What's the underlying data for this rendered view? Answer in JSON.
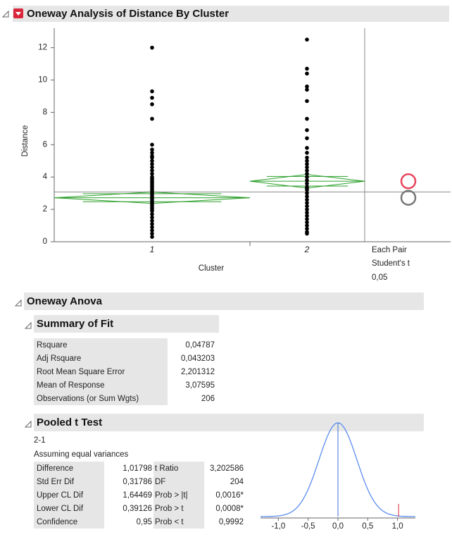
{
  "header": {
    "title": "Oneway Analysis of Distance By Cluster"
  },
  "chart_data": {
    "type": "scatter",
    "ylabel": "Distance",
    "xlabel": "Cluster",
    "categories": [
      "1",
      "2"
    ],
    "ylim": [
      0,
      12.9
    ],
    "yticks": [
      0,
      2,
      4,
      6,
      8,
      10,
      12
    ],
    "series": [
      {
        "color": "#000000",
        "values": [
          0.3,
          0.5,
          0.7,
          0.9,
          1.1,
          1.3,
          1.5,
          1.7,
          1.9,
          2.0,
          2.1,
          2.2,
          2.3,
          2.4,
          2.5,
          2.6,
          2.7,
          2.8,
          2.9,
          3.0,
          3.1,
          3.2,
          3.3,
          3.4,
          3.5,
          3.6,
          3.7,
          3.8,
          3.9,
          4.0,
          4.2,
          4.4,
          4.6,
          4.8,
          5.0,
          5.2,
          5.3,
          5.5,
          5.7,
          6.0,
          7.6,
          8.5,
          8.9,
          9.3,
          12.0
        ]
      },
      {
        "color": "#000000",
        "values": [
          0.5,
          0.6,
          0.8,
          1.0,
          1.2,
          1.4,
          1.6,
          1.8,
          2.0,
          2.2,
          2.4,
          2.6,
          2.8,
          3.0,
          3.2,
          3.3,
          3.4,
          3.6,
          3.8,
          4.0,
          4.2,
          4.4,
          4.6,
          4.8,
          5.0,
          5.2,
          5.5,
          5.8,
          6.4,
          6.9,
          7.6,
          8.7,
          9.4,
          9.6,
          10.4,
          10.7,
          12.5
        ]
      }
    ],
    "diamonds": [
      {
        "mean": 2.72,
        "lower": 2.37,
        "upper": 3.07,
        "color": "#2ca02c"
      },
      {
        "mean": 3.74,
        "lower": 3.32,
        "upper": 4.16,
        "color": "#2ca02c"
      }
    ],
    "grand_mean": 3.07595,
    "circle_colors": [
      "#777777",
      "#e8435a"
    ],
    "comparison": [
      "Each Pair",
      "Student's t",
      "0,05"
    ]
  },
  "anova": {
    "title": "Oneway Anova"
  },
  "summary_of_fit": {
    "title": "Summary of Fit",
    "rows": [
      [
        "Rsquare",
        "0,04787"
      ],
      [
        "Adj Rsquare",
        "0,043203"
      ],
      [
        "Root Mean Square Error",
        "2,201312"
      ],
      [
        "Mean of Response",
        "3,07595"
      ],
      [
        "Observations (or Sum Wgts)",
        "206"
      ]
    ]
  },
  "pooled_t": {
    "title": "Pooled t Test",
    "subtitle": "2-1",
    "note": "Assuming equal variances",
    "rows": [
      [
        "Difference",
        "1,01798",
        "t Ratio",
        "3,202586"
      ],
      [
        "Std Err Dif",
        "0,31786",
        "DF",
        "204"
      ],
      [
        "Upper CL Dif",
        "1,64469",
        "Prob > |t|",
        "0,0016*"
      ],
      [
        "Lower CL Dif",
        "0,39126",
        "Prob > t",
        "0,0008*"
      ],
      [
        "Confidence",
        "0,95",
        "Prob < t",
        "0,9992"
      ]
    ]
  },
  "t_plot": {
    "xlim": [
      -1.3,
      1.3
    ],
    "xticks": [
      {
        "value": -1,
        "label": "-1,0"
      },
      {
        "value": -0.5,
        "label": "-0,5"
      },
      {
        "value": 0,
        "label": "0,0"
      },
      {
        "value": 0.5,
        "label": "0,5"
      },
      {
        "value": 1,
        "label": "1,0"
      }
    ],
    "difference": 1.01798,
    "std_err": 0.31786
  }
}
